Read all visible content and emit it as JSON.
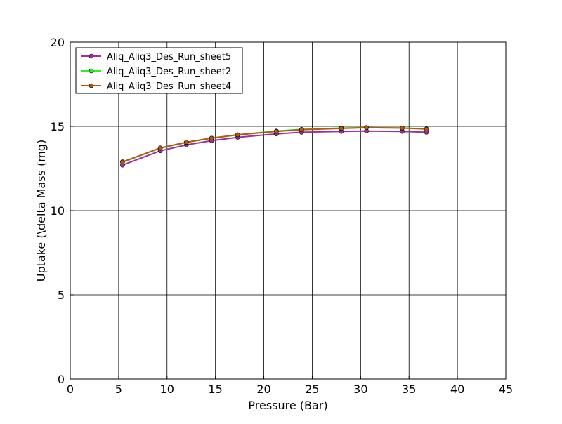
{
  "chart_data": {
    "type": "line",
    "title": "",
    "xlabel": "Pressure (Bar)",
    "ylabel": "Uptake (\\delta Mass (mg)",
    "xlim": [
      0,
      45
    ],
    "ylim": [
      0,
      20
    ],
    "xticks": [
      0,
      5,
      10,
      15,
      20,
      25,
      30,
      35,
      40,
      45
    ],
    "yticks": [
      0,
      5,
      10,
      15,
      20
    ],
    "grid": true,
    "legend_position": "top-left",
    "series": [
      {
        "name": "Aliq_Aliq3_Des_Run_sheet5",
        "color": "#a0309a",
        "x": [
          5.4,
          9.3,
          12.0,
          14.6,
          17.3,
          21.3,
          23.9,
          28.0,
          30.6,
          34.3,
          36.8
        ],
        "y": [
          12.7,
          13.55,
          13.9,
          14.15,
          14.35,
          14.55,
          14.65,
          14.7,
          14.72,
          14.7,
          14.65
        ]
      },
      {
        "name": "Aliq_Aliq3_Des_Run_sheet2",
        "color": "#33ee22",
        "x": [
          5.4,
          9.3,
          12.0,
          14.6,
          17.3,
          21.3,
          23.9,
          28.0,
          30.6,
          34.3,
          36.8
        ],
        "y": [
          12.9,
          13.7,
          14.05,
          14.3,
          14.5,
          14.72,
          14.82,
          14.9,
          14.93,
          14.9,
          14.85
        ]
      },
      {
        "name": "Aliq_Aliq3_Des_Run_sheet4",
        "color": "#b05a10",
        "x": [
          5.4,
          9.3,
          12.0,
          14.6,
          17.3,
          21.3,
          23.9,
          28.0,
          30.6,
          34.3,
          36.8
        ],
        "y": [
          12.88,
          13.72,
          14.06,
          14.3,
          14.5,
          14.7,
          14.8,
          14.88,
          14.92,
          14.9,
          14.84
        ]
      }
    ]
  }
}
